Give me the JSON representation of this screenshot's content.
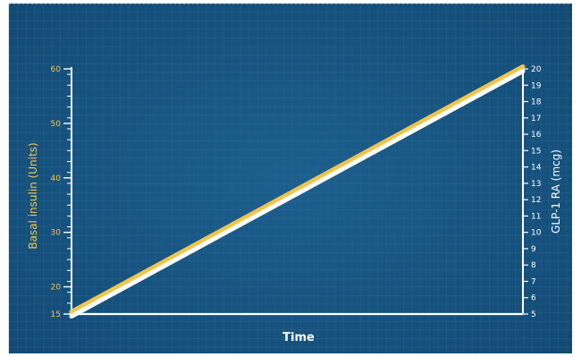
{
  "colors": {
    "background": "#17527d",
    "background_dark": "#0e3e63",
    "grid": "#2d6a95",
    "axis": "#ffffff",
    "left_accent": "#f2c44a",
    "right_text": "#ffffff"
  },
  "chart_data": {
    "type": "line",
    "xlabel": "Time",
    "ylabel_left": "Basal insulin (Units)",
    "ylabel_right": "GLP-1 RA (mcg)",
    "ylim_left": [
      15,
      60
    ],
    "ylim_right": [
      5,
      20
    ],
    "left_ticks": [
      15,
      20,
      30,
      40,
      50,
      60
    ],
    "right_ticks": [
      5,
      6,
      7,
      8,
      9,
      10,
      11,
      12,
      13,
      14,
      15,
      16,
      17,
      18,
      19,
      20
    ],
    "x": [
      0,
      1
    ],
    "series": [
      {
        "axis": "left",
        "color": "#f2c44a",
        "values": [
          15,
          60
        ]
      },
      {
        "axis": "right",
        "color": "#ffffff",
        "values": [
          5,
          20
        ]
      }
    ],
    "grid": true
  }
}
